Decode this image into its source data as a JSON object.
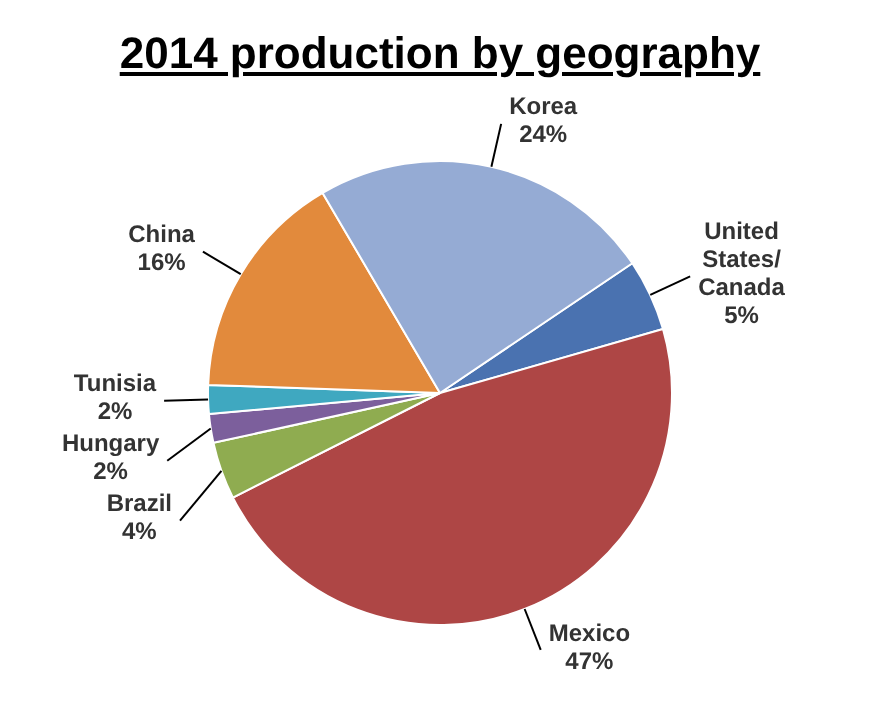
{
  "chart_data": {
    "type": "pie",
    "title": "2014 production by geography",
    "categories": [
      "United States/ Canada",
      "Mexico",
      "Brazil",
      "Hungary",
      "Tunisia",
      "China",
      "Korea"
    ],
    "values": [
      5,
      47,
      4,
      2,
      2,
      16,
      24
    ],
    "value_labels": [
      "5%",
      "47%",
      "4%",
      "2%",
      "2%",
      "16%",
      "24%"
    ],
    "colors": [
      "#4a72b0",
      "#ae4645",
      "#8fac50",
      "#7c5f9c",
      "#3fa8c0",
      "#e28a3c",
      "#95abd4"
    ],
    "legend": false
  }
}
